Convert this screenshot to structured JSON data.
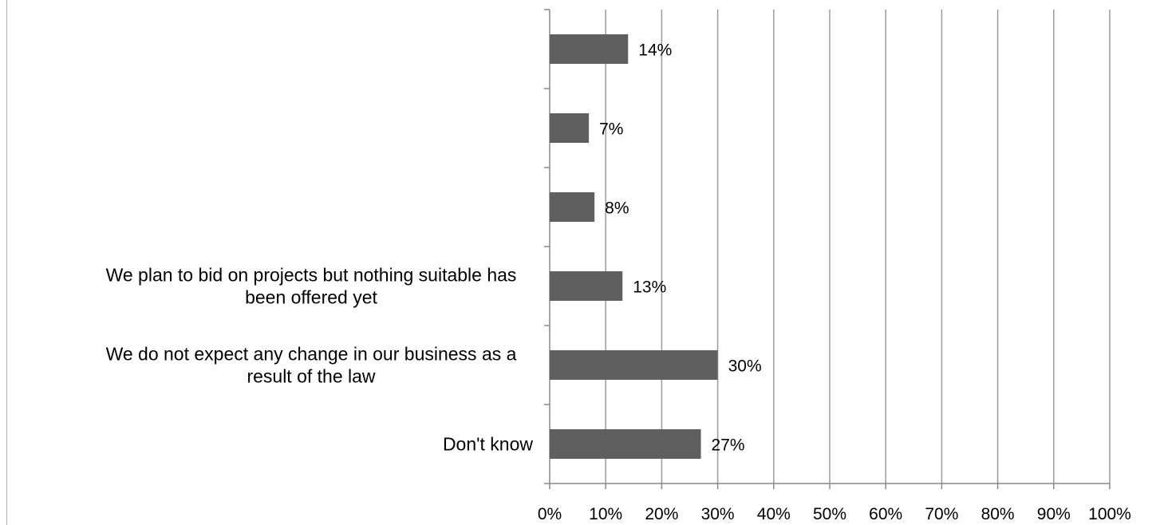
{
  "chart_data": {
    "type": "bar",
    "orientation": "horizontal",
    "categories": [
      "",
      "",
      "",
      "We plan to bid on projects but nothing suitable has been offered yet",
      "We do not expect any change in our business as a result of the law",
      "Don't know"
    ],
    "category_lines": [
      [],
      [],
      [],
      [
        "We plan to bid on projects but nothing suitable has",
        "been offered yet"
      ],
      [
        "We do not expect any change in our business as a",
        "result of the law"
      ],
      [
        "Don't know"
      ]
    ],
    "values": [
      14,
      7,
      8,
      13,
      30,
      27
    ],
    "data_labels": [
      "14%",
      "7%",
      "8%",
      "13%",
      "30%",
      "27%"
    ],
    "xlim": [
      0,
      100
    ],
    "xticks": [
      0,
      10,
      20,
      30,
      40,
      50,
      60,
      70,
      80,
      90,
      100
    ],
    "xtick_labels": [
      "0%",
      "10%",
      "20%",
      "30%",
      "40%",
      "50%",
      "60%",
      "70%",
      "80%",
      "90%",
      "100%"
    ],
    "grid": true,
    "legend": "none",
    "bar_color": "#5f5f5f",
    "grid_color": "#9a9a9a",
    "axis_color": "#888888"
  }
}
